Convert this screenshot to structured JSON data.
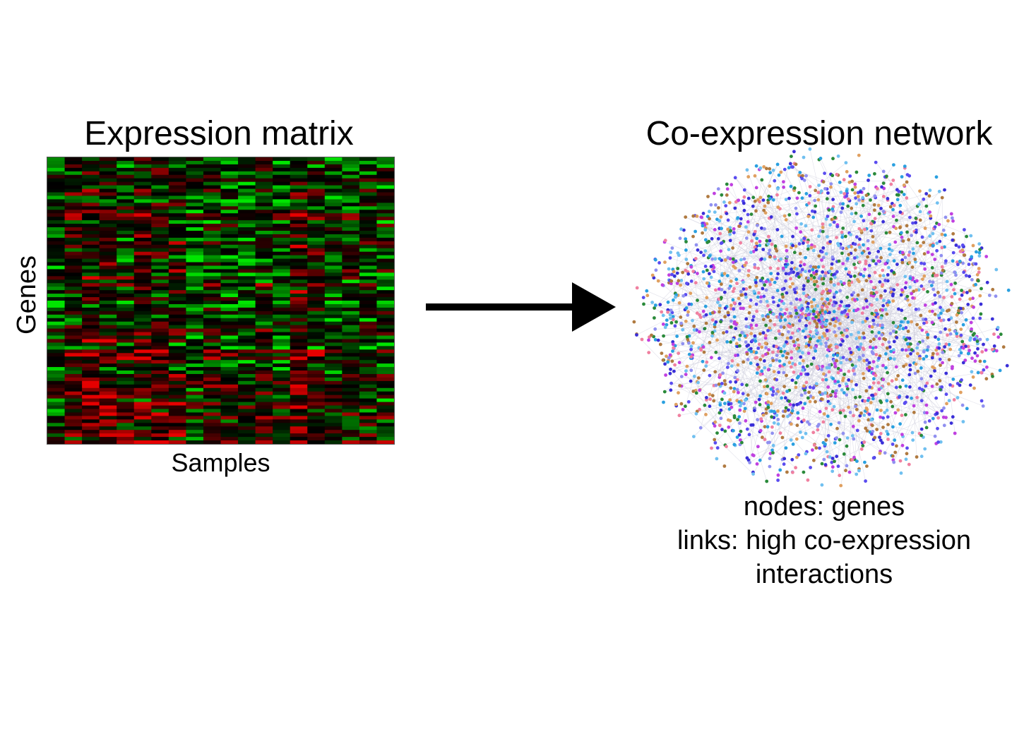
{
  "left_panel": {
    "title": "Expression matrix",
    "y_axis_label": "Genes",
    "x_axis_label": "Samples",
    "colors": {
      "low": "#00c800",
      "mid": "#000000",
      "high": "#e00000"
    }
  },
  "arrow": {
    "icon": "right-arrow-icon",
    "color": "#000000"
  },
  "right_panel": {
    "title": "Co-expression network",
    "caption_lines": [
      "nodes: genes",
      "links: high co-expression",
      "interactions"
    ],
    "node_colors": [
      "#3a2fd8",
      "#5a4cf0",
      "#2aa0e0",
      "#e0a060",
      "#f080a0",
      "#c040e0",
      "#2a8a3a",
      "#9090f0",
      "#70c0f0",
      "#b07a40"
    ]
  }
}
